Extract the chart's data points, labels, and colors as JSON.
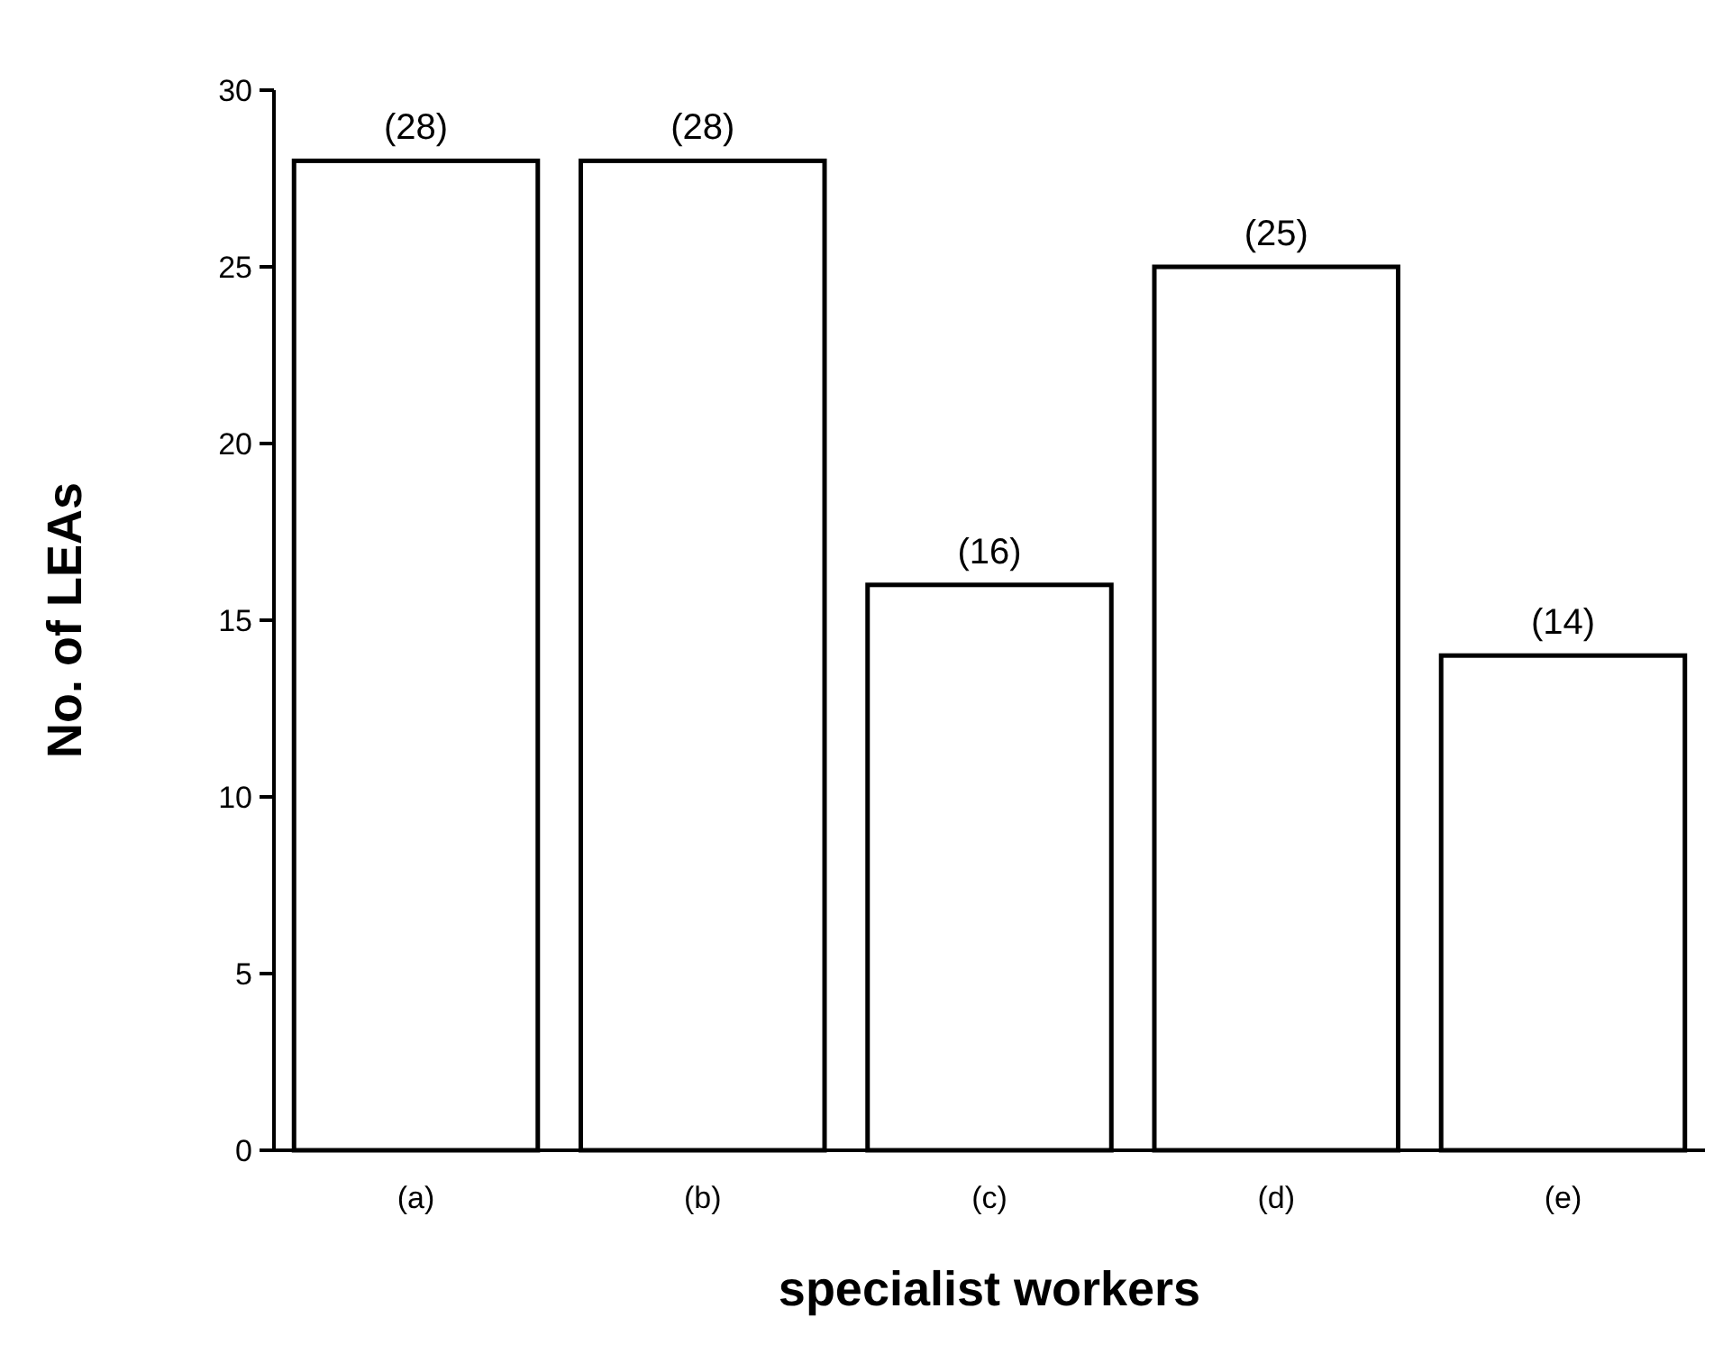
{
  "chart_data": {
    "type": "bar",
    "xlabel": "specialist workers",
    "ylabel": "No. of LEAs",
    "categories": [
      "(a)",
      "(b)",
      "(c)",
      "(d)",
      "(e)"
    ],
    "values": [
      28,
      28,
      16,
      25,
      14
    ],
    "value_labels": [
      "(28)",
      "(28)",
      "(16)",
      "(25)",
      "(14)"
    ],
    "color": "#ffffff",
    "ylim": [
      0,
      30
    ],
    "yticks": [
      0,
      5,
      10,
      15,
      20,
      25,
      30
    ],
    "grid": false
  }
}
